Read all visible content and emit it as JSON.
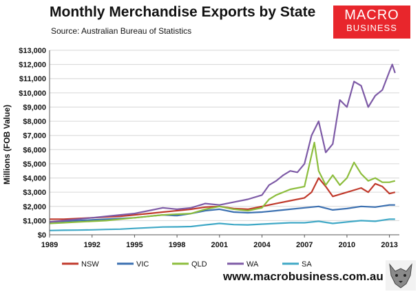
{
  "header": {
    "title": "Monthly Merchandise Exports by State",
    "subtitle": "Source: Australian Bureau of Statistics"
  },
  "logo": {
    "line1": "MACRO",
    "line2": "BUSINESS"
  },
  "footer": {
    "website": "www.macrobusiness.com.au"
  },
  "chart_data": {
    "type": "line",
    "ylabel": "Millions (FOB Value)",
    "xlabel": "",
    "xlim": [
      1989,
      2013.7
    ],
    "ylim": [
      0,
      13000
    ],
    "x_ticks": [
      1989,
      1992,
      1995,
      1998,
      2001,
      2004,
      2007,
      2010,
      2013
    ],
    "x_tick_labels": [
      "1989",
      "1992",
      "1995",
      "1998",
      "2001",
      "2004",
      "2007",
      "2010",
      "2013"
    ],
    "y_ticks": [
      0,
      1000,
      2000,
      3000,
      4000,
      5000,
      6000,
      7000,
      8000,
      9000,
      10000,
      11000,
      12000,
      13000
    ],
    "y_tick_labels": [
      "$0",
      "$1,000",
      "$2,000",
      "$3,000",
      "$4,000",
      "$5,000",
      "$6,000",
      "$7,000",
      "$8,000",
      "$9,000",
      "$10,000",
      "$11,000",
      "$12,000",
      "$13,000"
    ],
    "grid": "horizontal",
    "legend_position": "bottom",
    "series": [
      {
        "name": "NSW",
        "color": "#c0392b",
        "x": [
          1989,
          1990,
          1991,
          1992,
          1993,
          1994,
          1995,
          1996,
          1997,
          1998,
          1999,
          2000,
          2001,
          2002,
          2003,
          2004,
          2005,
          2006,
          2007,
          2007.5,
          2008,
          2008.5,
          2009,
          2010,
          2011,
          2011.5,
          2012,
          2012.5,
          2013,
          2013.4
        ],
        "y": [
          1100,
          1100,
          1150,
          1200,
          1250,
          1300,
          1400,
          1500,
          1600,
          1700,
          1800,
          1950,
          2000,
          1850,
          1800,
          2000,
          2200,
          2400,
          2600,
          3000,
          4000,
          3400,
          2700,
          3000,
          3300,
          3000,
          3600,
          3400,
          2900,
          3000
        ]
      },
      {
        "name": "VIC",
        "color": "#3a6fb0",
        "x": [
          1989,
          1990,
          1991,
          1992,
          1993,
          1994,
          1995,
          1996,
          1997,
          1998,
          1999,
          2000,
          2001,
          2002,
          2003,
          2004,
          2005,
          2006,
          2007,
          2008,
          2009,
          2010,
          2011,
          2012,
          2013,
          2013.4
        ],
        "y": [
          900,
          950,
          1000,
          1050,
          1100,
          1150,
          1200,
          1300,
          1400,
          1350,
          1500,
          1700,
          1800,
          1600,
          1550,
          1600,
          1700,
          1800,
          1900,
          2000,
          1750,
          1850,
          2000,
          1950,
          2100,
          2100
        ]
      },
      {
        "name": "QLD",
        "color": "#8cbd3c",
        "x": [
          1989,
          1990,
          1991,
          1992,
          1993,
          1994,
          1995,
          1996,
          1997,
          1998,
          1999,
          2000,
          2001,
          2002,
          2003,
          2004,
          2004.5,
          2005,
          2006,
          2007,
          2007.7,
          2008,
          2008.5,
          2009,
          2009.5,
          2010,
          2010.5,
          2011,
          2011.5,
          2012,
          2012.5,
          2013,
          2013.4
        ],
        "y": [
          800,
          850,
          900,
          950,
          1000,
          1100,
          1200,
          1300,
          1400,
          1450,
          1500,
          1800,
          2000,
          1800,
          1700,
          1900,
          2500,
          2800,
          3200,
          3400,
          6500,
          4500,
          3500,
          4200,
          3500,
          4000,
          5100,
          4300,
          3800,
          4000,
          3700,
          3700,
          3800
        ]
      },
      {
        "name": "WA",
        "color": "#7d5aa6",
        "x": [
          1989,
          1990,
          1991,
          1992,
          1993,
          1994,
          1995,
          1996,
          1997,
          1998,
          1999,
          2000,
          2001,
          2002,
          2003,
          2004,
          2004.5,
          2005,
          2005.5,
          2006,
          2006.5,
          2007,
          2007.5,
          2008,
          2008.5,
          2009,
          2009.5,
          2010,
          2010.5,
          2011,
          2011.5,
          2012,
          2012.5,
          2013,
          2013.2,
          2013.4
        ],
        "y": [
          900,
          1000,
          1100,
          1200,
          1300,
          1400,
          1500,
          1700,
          1900,
          1800,
          1900,
          2200,
          2100,
          2300,
          2500,
          2800,
          3500,
          3800,
          4200,
          4500,
          4400,
          5000,
          7000,
          8000,
          5800,
          6400,
          9500,
          9000,
          10800,
          10500,
          9000,
          9800,
          10200,
          11500,
          12000,
          11400
        ]
      },
      {
        "name": "SA",
        "color": "#3fa8c6",
        "x": [
          1989,
          1990,
          1991,
          1992,
          1993,
          1994,
          1995,
          1996,
          1997,
          1998,
          1999,
          2000,
          2001,
          2002,
          2003,
          2004,
          2005,
          2006,
          2007,
          2008,
          2009,
          2010,
          2011,
          2012,
          2013,
          2013.4
        ],
        "y": [
          300,
          320,
          330,
          350,
          380,
          400,
          450,
          500,
          550,
          560,
          580,
          700,
          800,
          720,
          700,
          750,
          800,
          850,
          850,
          950,
          800,
          900,
          1000,
          950,
          1100,
          1100
        ]
      }
    ]
  }
}
